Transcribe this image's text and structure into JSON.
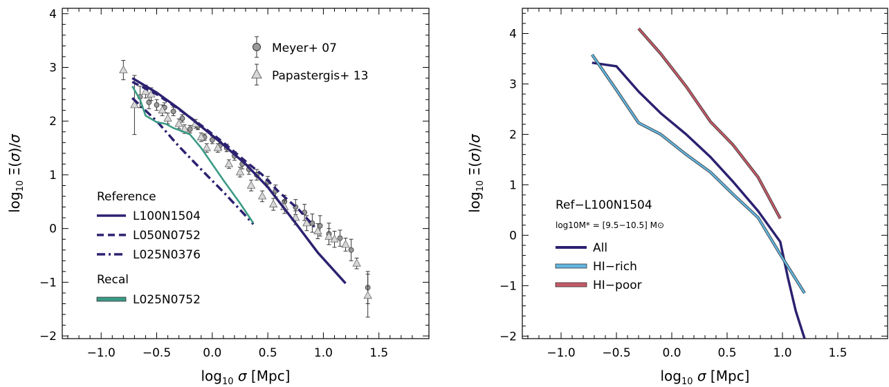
{
  "chart_data": [
    {
      "type": "line",
      "xlabel": "log10 σ [Mpc]",
      "ylabel": "log10 Ξ(σ)/σ",
      "xlim": [
        -1.35,
        1.95
      ],
      "ylim": [
        -2.05,
        4.1
      ],
      "xticks": [
        -1.0,
        -0.5,
        0.0,
        0.5,
        1.0,
        1.5
      ],
      "xtick_labels": [
        "−1.0",
        "−0.5",
        "0.0",
        "0.5",
        "1.0",
        "1.5"
      ],
      "yticks": [
        -2,
        -1,
        0,
        1,
        2,
        3,
        4
      ],
      "ytick_labels": [
        "−2",
        "−1",
        "0",
        "1",
        "2",
        "3",
        "4"
      ],
      "grid": false,
      "legend_groups": [
        "Reference",
        "Recal"
      ],
      "series": [
        {
          "name": "L100N1504",
          "group": "Reference",
          "color": "#2b2170",
          "style": "solid",
          "x": [
            -0.72,
            -0.5,
            -0.3,
            -0.1,
            0.1,
            0.3,
            0.5,
            0.75,
            0.95,
            1.2
          ],
          "y": [
            2.8,
            2.53,
            2.23,
            1.9,
            1.56,
            1.2,
            0.77,
            0.1,
            -0.45,
            -1.02
          ]
        },
        {
          "name": "L050N0752",
          "group": "Reference",
          "color": "#2b2170",
          "style": "dashed",
          "x": [
            -0.72,
            -0.5,
            -0.3,
            -0.1,
            0.1,
            0.3,
            0.45,
            0.6,
            0.78,
            0.92
          ],
          "y": [
            2.73,
            2.5,
            2.22,
            1.92,
            1.6,
            1.25,
            1.0,
            0.68,
            0.35,
            0.03
          ]
        },
        {
          "name": "L025N0376",
          "group": "Reference",
          "color": "#2b2170",
          "style": "dashdot",
          "x": [
            -0.72,
            -0.5,
            -0.3,
            -0.1,
            0.1,
            0.25,
            0.37
          ],
          "y": [
            2.43,
            2.0,
            1.53,
            1.1,
            0.68,
            0.35,
            0.08
          ]
        },
        {
          "name": "L025N0752",
          "group": "Recal",
          "color": "#3b9a85",
          "style": "solid",
          "x": [
            -0.72,
            -0.65,
            -0.6,
            -0.5,
            -0.42,
            -0.35,
            -0.28,
            -0.2,
            -0.1,
            0.0,
            0.1,
            0.25,
            0.37
          ],
          "y": [
            2.65,
            2.4,
            2.1,
            1.98,
            1.95,
            1.87,
            1.82,
            1.75,
            1.5,
            1.2,
            0.9,
            0.47,
            0.1
          ]
        }
      ],
      "observations": [
        {
          "name": "Meyer+ 07",
          "marker": "circle",
          "color": "#9a9a9a",
          "x": [
            -0.65,
            -0.57,
            -0.5,
            -0.43,
            -0.35,
            -0.27,
            -0.2,
            -0.13,
            -0.07,
            0.0,
            0.07,
            0.13,
            0.2,
            0.27,
            0.33,
            0.4,
            0.5,
            0.57,
            0.65,
            0.75,
            0.83,
            0.9,
            0.97,
            1.05,
            1.15,
            1.25,
            1.4
          ],
          "y": [
            2.45,
            2.35,
            2.3,
            2.25,
            2.18,
            2.05,
            1.85,
            1.9,
            1.7,
            1.65,
            1.55,
            1.5,
            1.35,
            1.2,
            1.1,
            1.0,
            0.87,
            0.7,
            0.5,
            0.4,
            0.3,
            0.1,
            0.05,
            -0.1,
            -0.18,
            -0.4,
            -1.1
          ],
          "err": [
            0.2,
            0.12,
            0.1,
            0.09,
            0.08,
            0.07,
            0.07,
            0.06,
            0.06,
            0.07,
            0.07,
            0.07,
            0.08,
            0.09,
            0.09,
            0.1,
            0.1,
            0.11,
            0.12,
            0.14,
            0.15,
            0.17,
            0.19,
            0.2,
            0.15,
            0.2,
            0.3
          ]
        },
        {
          "name": "Papastergis+ 13",
          "marker": "triangle",
          "color": "#d8d8d8",
          "x": [
            -0.8,
            -0.7,
            -0.6,
            -0.55,
            -0.45,
            -0.4,
            -0.3,
            -0.25,
            -0.15,
            -0.1,
            -0.05,
            0.05,
            0.15,
            0.25,
            0.35,
            0.45,
            0.55,
            0.65,
            0.75,
            0.85,
            0.95,
            1.05,
            1.1,
            1.2,
            1.3,
            1.4
          ],
          "y": [
            2.95,
            2.3,
            2.55,
            2.5,
            2.2,
            2.05,
            1.95,
            1.85,
            1.95,
            1.7,
            1.5,
            1.5,
            1.2,
            1.05,
            0.8,
            0.6,
            0.45,
            0.4,
            0.2,
            0.1,
            -0.05,
            -0.15,
            -0.2,
            -0.3,
            -0.65,
            -1.25
          ],
          "err": [
            0.18,
            0.55,
            0.12,
            0.12,
            0.1,
            0.1,
            0.09,
            0.08,
            0.08,
            0.08,
            0.08,
            0.08,
            0.08,
            0.09,
            0.1,
            0.1,
            0.11,
            0.12,
            0.13,
            0.14,
            0.14,
            0.15,
            0.15,
            0.12,
            0.1,
            0.4
          ]
        }
      ],
      "legend_top_right": [
        "Meyer+ 07",
        "Papastergis+ 13"
      ]
    },
    {
      "type": "line",
      "xlabel": "log10 σ [Mpc]",
      "ylabel": "log10 Ξ(σ)/σ",
      "xlim": [
        -1.35,
        1.95
      ],
      "ylim": [
        -2.05,
        4.5
      ],
      "xticks": [
        -1.0,
        -0.5,
        0.0,
        0.5,
        1.0,
        1.5
      ],
      "xtick_labels": [
        "−1.0",
        "−0.5",
        "0.0",
        "0.5",
        "1.0",
        "1.5"
      ],
      "yticks": [
        -2,
        -1,
        0,
        1,
        2,
        3,
        4
      ],
      "ytick_labels": [
        "−2",
        "−1",
        "0",
        "1",
        "2",
        "3",
        "4"
      ],
      "grid": false,
      "legend_title": "Ref−L100N1504",
      "legend_subtitle": "log10M* = [9.5−10.5] M⊙",
      "series": [
        {
          "name": "All",
          "color": "#2b2170",
          "style": "solid",
          "x": [
            -0.72,
            -0.5,
            -0.3,
            -0.1,
            0.13,
            0.35,
            0.55,
            0.78,
            0.98,
            1.05,
            1.12,
            1.2
          ],
          "y": [
            3.42,
            3.35,
            2.85,
            2.42,
            2.0,
            1.55,
            1.07,
            0.48,
            -0.13,
            -0.85,
            -1.5,
            -2.05
          ]
        },
        {
          "name": "HI−rich",
          "color": "#63b6e0",
          "style": "solid",
          "x": [
            -0.72,
            -0.5,
            -0.3,
            -0.1,
            0.13,
            0.35,
            0.55,
            0.78,
            0.98,
            1.2
          ],
          "y": [
            3.58,
            2.88,
            2.23,
            2.0,
            1.6,
            1.25,
            0.82,
            0.35,
            -0.38,
            -1.15
          ]
        },
        {
          "name": "HI−poor",
          "color": "#c45a68",
          "style": "solid",
          "x": [
            -0.3,
            -0.1,
            0.13,
            0.35,
            0.55,
            0.78,
            0.98
          ],
          "y": [
            4.1,
            3.6,
            2.95,
            2.25,
            1.8,
            1.15,
            0.33
          ]
        }
      ]
    }
  ]
}
